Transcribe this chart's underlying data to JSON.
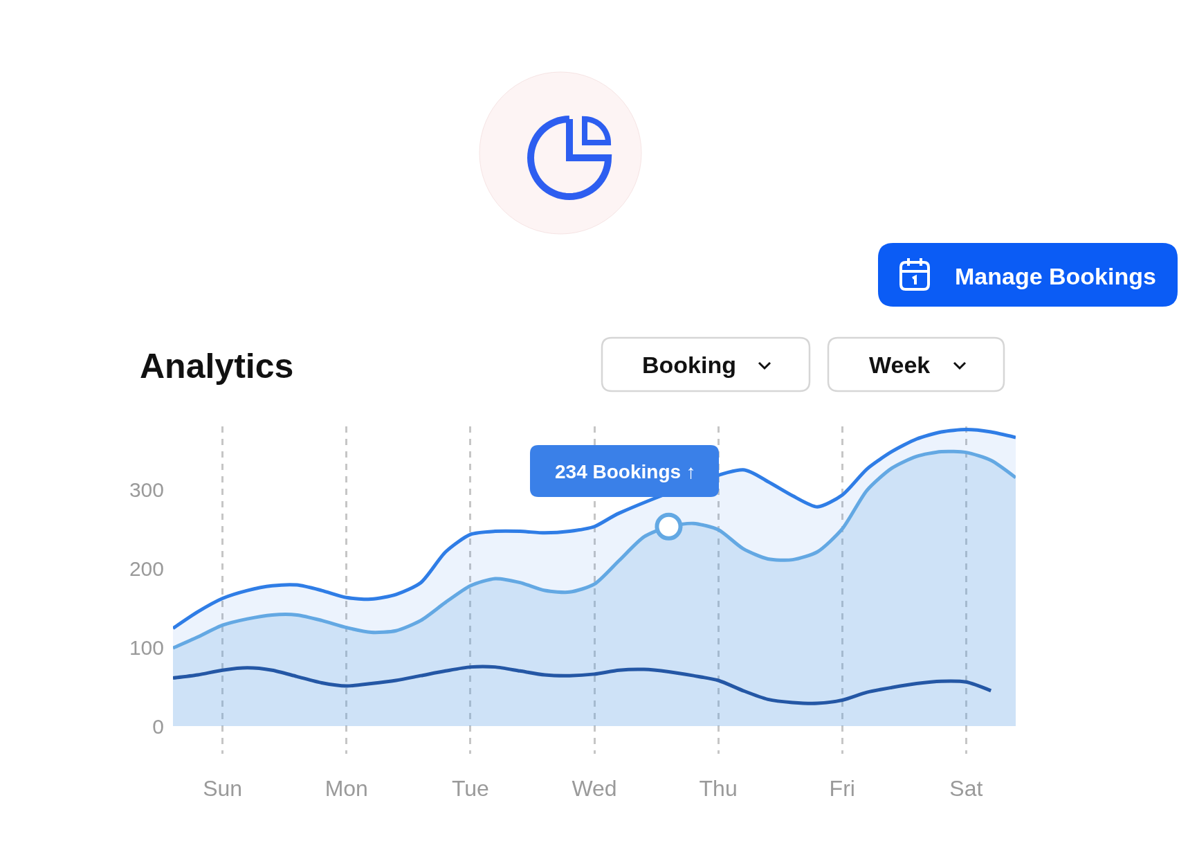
{
  "chart_data": {
    "type": "area",
    "title": "Analytics",
    "categories": [
      null,
      null,
      "Sun",
      null,
      null,
      null,
      null,
      "Mon",
      null,
      null,
      null,
      null,
      "Tue",
      null,
      null,
      null,
      null,
      "Wed",
      null,
      null,
      null,
      null,
      "Thu",
      null,
      null,
      null,
      null,
      "Fri",
      null,
      null,
      null,
      null,
      "Sat",
      null,
      null
    ],
    "ylim": [
      -35,
      380
    ],
    "yticks": [
      0,
      100,
      200,
      300
    ],
    "grid": "x",
    "annotations": [
      "234 Bookings ↑",
      "Booking",
      "Week",
      "Manage Bookings"
    ],
    "series": [
      {
        "color": "#2f7de6",
        "values": [
          124,
          145,
          162,
          172,
          178,
          179,
          172,
          163,
          161,
          167,
          182,
          221,
          243,
          247,
          247,
          245,
          247,
          253,
          270,
          null,
          null,
          null,
          null,
          325,
          310,
          292,
          278,
          293,
          326,
          348,
          364,
          373,
          376,
          373,
          366
        ]
      },
      {
        "color": "#63a8e3",
        "values": [
          99,
          113,
          128,
          136,
          141,
          141,
          134,
          125,
          119,
          121,
          134,
          157,
          178,
          187,
          182,
          172,
          170,
          180,
          210,
          240,
          253,
          257,
          249,
          225,
          212,
          211,
          221,
          250,
          299,
          327,
          342,
          348,
          347,
          337,
          315
        ]
      },
      {
        "type": "line",
        "color": "#2457a5",
        "values": [
          61,
          65,
          71,
          74,
          71,
          63,
          55,
          51,
          54,
          58,
          64,
          70,
          75,
          75,
          70,
          65,
          64,
          66,
          71,
          72,
          69,
          64,
          58,
          45,
          34,
          30,
          29,
          33,
          43,
          49,
          54,
          57,
          56,
          45,
          null
        ]
      },
      {
        "type": "scatter",
        "color": "#63a8e3",
        "values": [
          null,
          null,
          null,
          null,
          null,
          null,
          null,
          null,
          null,
          null,
          null,
          null,
          null,
          null,
          null,
          null,
          null,
          null,
          null,
          null,
          253,
          null,
          null,
          null,
          null,
          null,
          null,
          null,
          null,
          null,
          null,
          null,
          null,
          null,
          null
        ]
      }
    ]
  }
}
